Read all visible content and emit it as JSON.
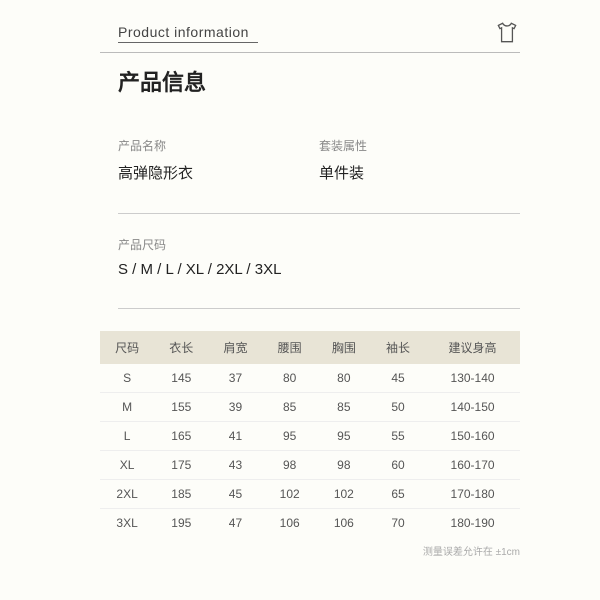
{
  "header": {
    "eng_label": "Product information",
    "title": "产品信息"
  },
  "specs": {
    "name_label": "产品名称",
    "name_value": "高弹隐形衣",
    "pack_label": "套装属性",
    "pack_value": "单件装",
    "size_label": "产品尺码",
    "size_value": "S / M / L / XL / 2XL / 3XL"
  },
  "size_table": {
    "header_bg": "#e8e4d6",
    "columns": [
      "尺码",
      "衣长",
      "肩宽",
      "腰围",
      "胸围",
      "袖长",
      "建议身高"
    ],
    "rows": [
      [
        "S",
        "145",
        "37",
        "80",
        "80",
        "45",
        "130-140"
      ],
      [
        "M",
        "155",
        "39",
        "85",
        "85",
        "50",
        "140-150"
      ],
      [
        "L",
        "165",
        "41",
        "95",
        "95",
        "55",
        "150-160"
      ],
      [
        "XL",
        "175",
        "43",
        "98",
        "98",
        "60",
        "160-170"
      ],
      [
        "2XL",
        "185",
        "45",
        "102",
        "102",
        "65",
        "170-180"
      ],
      [
        "3XL",
        "195",
        "47",
        "106",
        "106",
        "70",
        "180-190"
      ]
    ]
  },
  "footnote": "测量误差允许在 ±1cm"
}
